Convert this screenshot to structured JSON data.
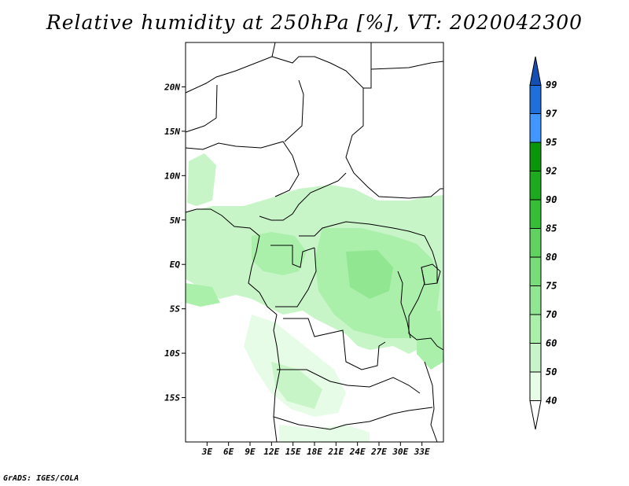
{
  "title": "Relative humidity at 250hPa [%], VT: 2020042300",
  "credit": "GrADS: IGES/COLA",
  "map": {
    "lon_range": [
      0,
      36
    ],
    "lat_range": [
      -20,
      25
    ],
    "lon_ticks": [
      "3E",
      "6E",
      "9E",
      "12E",
      "15E",
      "18E",
      "21E",
      "24E",
      "27E",
      "30E",
      "33E"
    ],
    "lat_ticks": [
      "20N",
      "15N",
      "10N",
      "5N",
      "EQ",
      "5S",
      "10S",
      "15S"
    ]
  },
  "colorbar": {
    "levels": [
      "40",
      "50",
      "60",
      "70",
      "75",
      "80",
      "85",
      "90",
      "92",
      "95",
      "97",
      "99"
    ],
    "colors": [
      "#ffffff",
      "#e6fce6",
      "#c8f5c8",
      "#aaf0aa",
      "#91e691",
      "#78dc78",
      "#5fd25f",
      "#37be37",
      "#1eaa1e",
      "#0a960a",
      "#4196ff",
      "#1e6edc",
      "#1450b4"
    ]
  }
}
